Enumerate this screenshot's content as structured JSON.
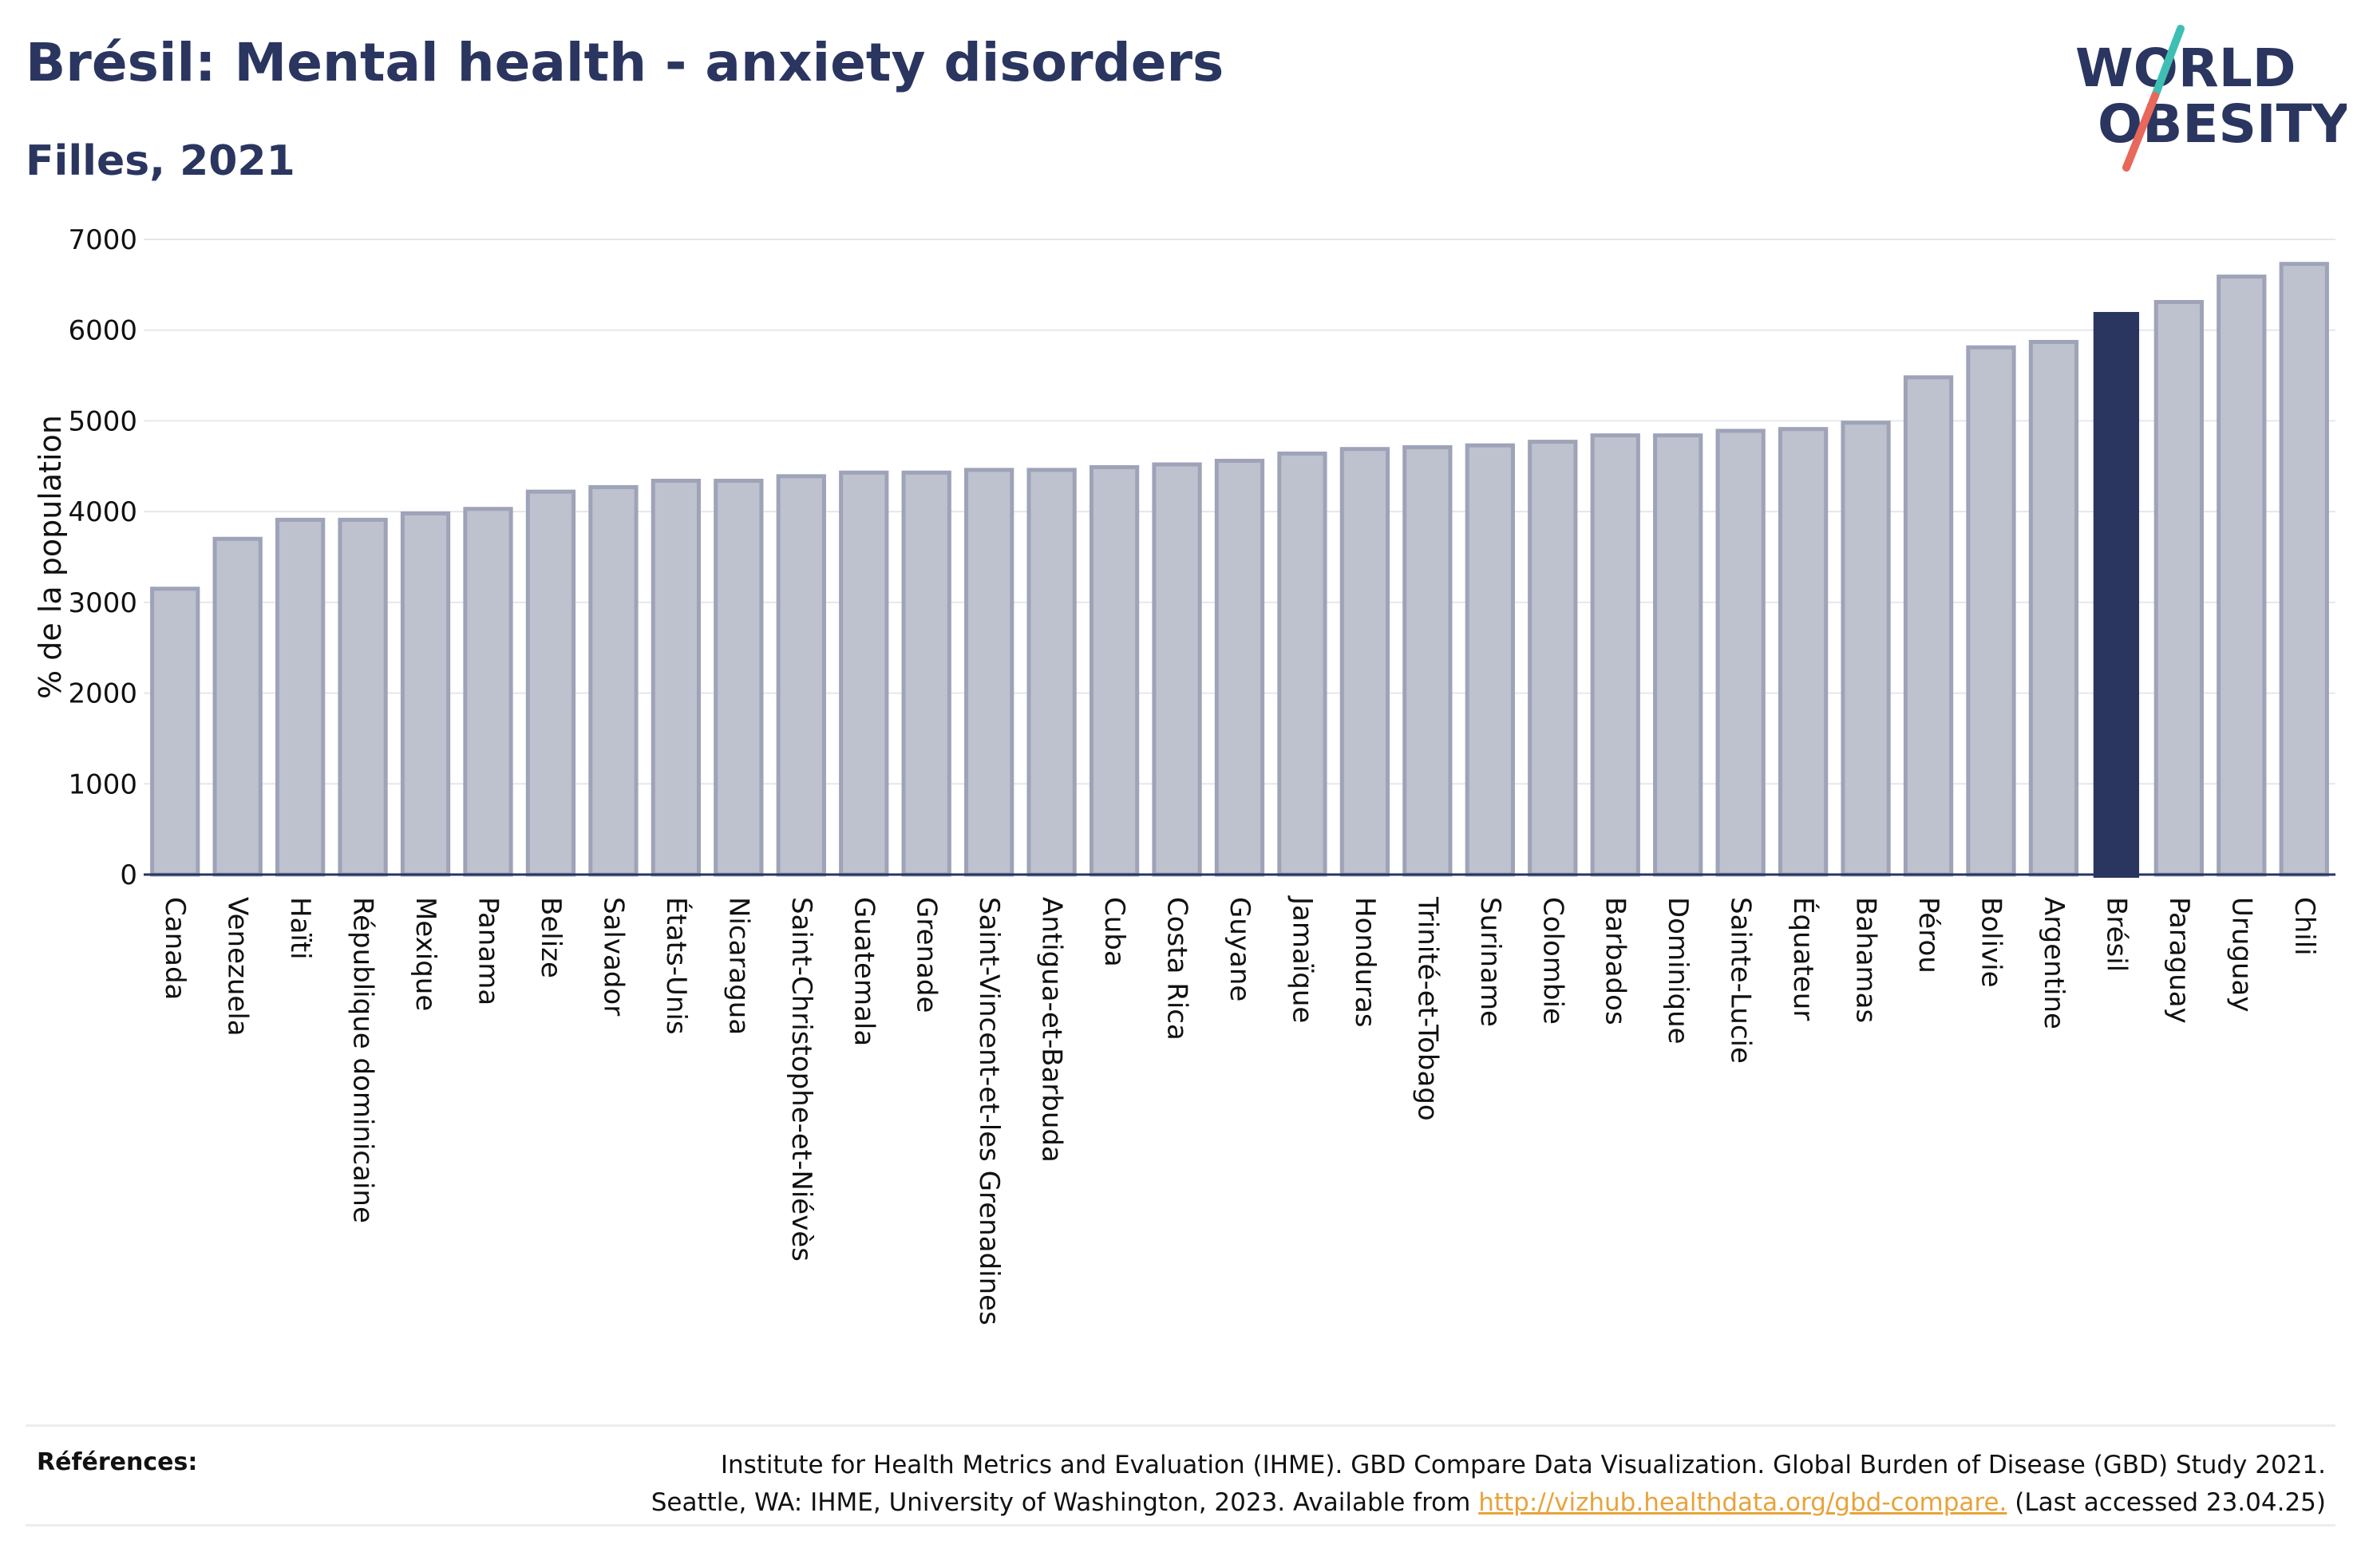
{
  "header": {
    "title": "Brésil: Mental health - anxiety disorders",
    "subtitle": "Filles, 2021"
  },
  "logo": {
    "line1": "WORLD",
    "line2": "OBESITY",
    "colors": {
      "text": "#2a3560",
      "slash_top": "#3fbfb3",
      "slash_bottom": "#e8685a"
    }
  },
  "chart_data": {
    "type": "bar",
    "ylabel": "% de la population",
    "ylim": [
      0,
      7000
    ],
    "yticks": [
      0,
      1000,
      2000,
      3000,
      4000,
      5000,
      6000,
      7000
    ],
    "grid": true,
    "categories": [
      "Canada",
      "Venezuela",
      "Haïti",
      "République dominicaine",
      "Mexique",
      "Panama",
      "Belize",
      "Salvador",
      "États-Unis",
      "Nicaragua",
      "Saint-Christophe-et-Niévès",
      "Guatemala",
      "Grenade",
      "Saint-Vincent-et-les Grenadines",
      "Antigua-et-Barbuda",
      "Cuba",
      "Costa Rica",
      "Guyane",
      "Jamaïque",
      "Honduras",
      "Trinité-et-Tobago",
      "Suriname",
      "Colombie",
      "Barbados",
      "Dominique",
      "Sainte-Lucie",
      "Équateur",
      "Bahamas",
      "Pérou",
      "Bolivie",
      "Argentine",
      "Brésil",
      "Paraguay",
      "Uruguay",
      "Chili"
    ],
    "values": [
      3150,
      3700,
      3910,
      3910,
      3980,
      4030,
      4220,
      4270,
      4340,
      4340,
      4390,
      4430,
      4430,
      4460,
      4460,
      4490,
      4520,
      4560,
      4640,
      4690,
      4710,
      4730,
      4770,
      4840,
      4840,
      4890,
      4910,
      4980,
      5480,
      5810,
      5870,
      6200,
      6310,
      6590,
      6730
    ],
    "highlight": "Brésil",
    "colors": {
      "bar": "#bec1ce",
      "bar_edge": "#9ea3b8",
      "highlight": "#2a3560",
      "axis": "#2a3560",
      "grid": "#e6e7ec"
    }
  },
  "references": {
    "label": "Références:",
    "line1": "Institute for Health Metrics and Evaluation (IHME). GBD Compare Data Visualization. Global Burden of Disease (GBD) Study 2021.",
    "line2_before": "Seattle, WA: IHME, University of Washington, 2023. Available from ",
    "link": "http://vizhub.healthdata.org/gbd-compare.",
    "line2_after": " (Last accessed 23.04.25)"
  }
}
